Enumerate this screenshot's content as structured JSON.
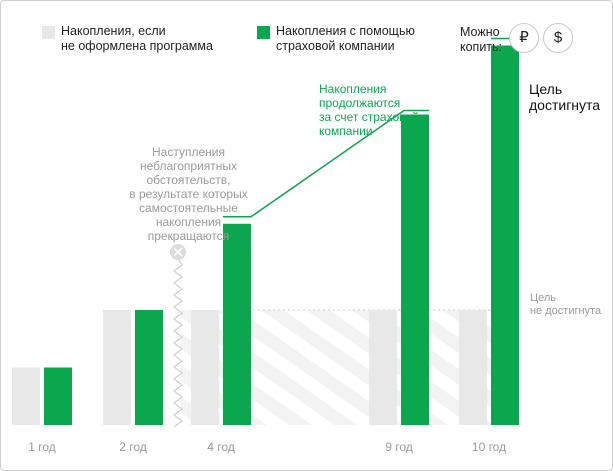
{
  "legend": {
    "no_program_label": "Накопления, если\nне оформлена программа",
    "with_insurer_label": "Накопления с помощью\nстраховой компании",
    "no_program_color": "#e8e8e8",
    "with_insurer_color": "#0aa74f"
  },
  "currency": {
    "label": "Можно\nкопить:",
    "ruble": "₽",
    "dollar": "$"
  },
  "annotations": {
    "adverse": "Наступления\nнеблагоприятных\nобстоятельств,\nв результате которых\nсамостоятельные\nнакопления\nпрекращаются",
    "continue": "Накопления\nпродолжаются\nза счет страховой\nкомпании",
    "goal_reached": "Цель\nдостигнута",
    "goal_not_reached": "Цель\nне достигнута"
  },
  "chart_data": {
    "type": "bar",
    "categories": [
      "1 год",
      "2 год",
      "4 год",
      "9 год",
      "10 год"
    ],
    "series": [
      {
        "name": "Накопления, если не оформлена программа",
        "values": [
          1.0,
          2.0,
          2.0,
          2.0,
          2.0
        ],
        "color": "#e8e8e8"
      },
      {
        "name": "Накопления с помощью страховой компании",
        "values": [
          1.0,
          2.0,
          3.5,
          5.4,
          6.6
        ],
        "color": "#0aa74f"
      }
    ],
    "ylim": [
      0,
      7
    ],
    "grid": false,
    "legend_position": "top"
  }
}
